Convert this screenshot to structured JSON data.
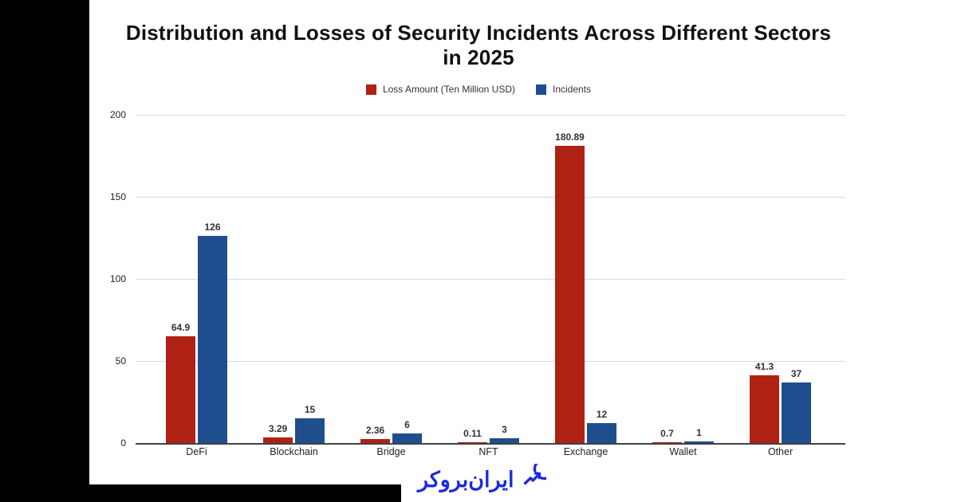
{
  "title": "Distribution and Losses of Security Incidents Across Different Sectors in 2025",
  "chart_data": {
    "type": "bar",
    "title": "Distribution and Losses of Security Incidents Across Different Sectors in 2025",
    "categories": [
      "DeFi",
      "Blockchain",
      "Bridge",
      "NFT",
      "Exchange",
      "Wallet",
      "Other"
    ],
    "series": [
      {
        "name": "Loss Amount (Ten Million USD)",
        "color": "#AF2113",
        "values": [
          64.9,
          3.29,
          2.36,
          0.11,
          180.89,
          0.7,
          41.3
        ]
      },
      {
        "name": "Incidents",
        "color": "#1F4E8E",
        "values": [
          126,
          15,
          6,
          3,
          12,
          1,
          37
        ]
      }
    ],
    "xlabel": "",
    "ylabel": "",
    "y_ticks": [
      0,
      50,
      100,
      150,
      200
    ],
    "ylim": [
      0,
      200
    ],
    "grid": true,
    "legend_position": "top",
    "bar_value_labels": true
  },
  "watermark": {
    "text": "ایران‌بروکر",
    "color": "#1B2BD9",
    "icon": "trend-circle-arrow-icon"
  },
  "colors": {
    "background": "#000000",
    "panel": "#ffffff",
    "gridline": "#d9d9d9",
    "axis": "#424242"
  }
}
